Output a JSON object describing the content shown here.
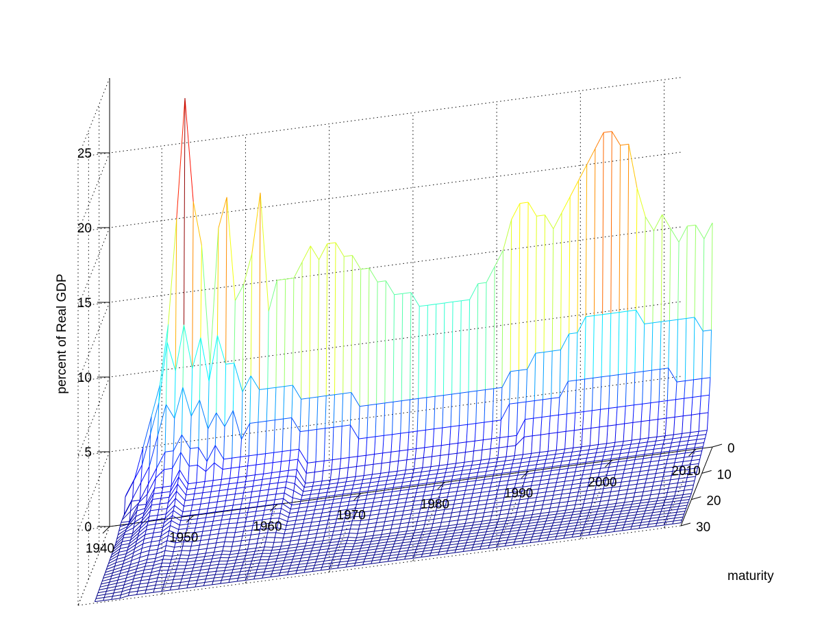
{
  "chart_data": {
    "type": "surface-mesh",
    "title": "",
    "xlabel": "",
    "ylabel": "maturity",
    "zlabel": "percent of Real GDP",
    "xlim": [
      1940,
      2012
    ],
    "ylim": [
      0,
      30
    ],
    "zlim": [
      0,
      30
    ],
    "x_ticks": [
      "1940",
      "1950",
      "1960",
      "1970",
      "1980",
      "1990",
      "2000",
      "2010"
    ],
    "y_ticks": [
      "0",
      "10",
      "20",
      "30"
    ],
    "z_ticks": [
      "0",
      "5",
      "10",
      "15",
      "20",
      "25"
    ],
    "years": [
      1942,
      1943,
      1944,
      1945,
      1946,
      1947,
      1948,
      1949,
      1950,
      1951,
      1952,
      1953,
      1954,
      1955,
      1956,
      1957,
      1958,
      1959,
      1960,
      1961,
      1962,
      1963,
      1964,
      1965,
      1966,
      1967,
      1968,
      1969,
      1970,
      1971,
      1972,
      1973,
      1974,
      1975,
      1976,
      1977,
      1978,
      1979,
      1980,
      1981,
      1982,
      1983,
      1984,
      1985,
      1986,
      1987,
      1988,
      1989,
      1990,
      1991,
      1992,
      1993,
      1994,
      1995,
      1996,
      1997,
      1998,
      1999,
      2000,
      2001,
      2002,
      2003,
      2004,
      2005,
      2006,
      2007,
      2008,
      2009,
      2010,
      2011,
      2012
    ],
    "maturities": [
      0,
      1,
      2,
      3,
      4,
      5,
      6,
      7,
      8,
      9,
      10,
      11,
      12,
      13,
      14,
      15,
      16,
      17,
      18,
      19,
      20,
      21,
      22,
      23,
      24,
      25,
      26,
      27,
      28,
      29,
      30
    ],
    "series": [
      {
        "name": "maturity 0",
        "values": [
          2,
          3,
          5,
          7,
          9,
          13,
          20,
          28,
          21,
          18,
          10,
          19,
          21,
          14,
          15,
          17,
          21,
          13,
          15,
          15,
          15,
          16,
          17,
          16,
          17,
          17,
          16,
          16,
          15,
          15,
          14,
          14,
          13,
          13,
          13,
          12,
          12,
          12,
          12,
          12,
          12,
          12,
          13,
          13,
          14,
          15,
          17,
          18,
          18,
          17,
          17,
          16,
          17,
          18,
          19,
          20,
          21,
          22,
          22,
          21,
          21,
          18,
          16,
          15,
          16,
          15,
          14,
          15,
          15,
          14,
          15
        ]
      },
      {
        "name": "maturity 1",
        "values": [
          2,
          3,
          4,
          6,
          8,
          12,
          10,
          13,
          10,
          12,
          9,
          12,
          10,
          10,
          8,
          9,
          8,
          8,
          8,
          8,
          8,
          7,
          7,
          7,
          7,
          7,
          7,
          7,
          6,
          6,
          6,
          6,
          6,
          6,
          6,
          6,
          6,
          6,
          6,
          6,
          6,
          6,
          6,
          6,
          6,
          6,
          7,
          7,
          7,
          8,
          8,
          8,
          8,
          9,
          9,
          10,
          10,
          10,
          10,
          10,
          10,
          10,
          9,
          9,
          9,
          9,
          9,
          9,
          9,
          8,
          8
        ]
      },
      {
        "name": "maturity 2",
        "values": [
          1,
          2,
          3,
          4,
          6,
          8,
          7,
          9,
          7,
          8,
          6,
          7,
          6,
          7,
          5,
          6,
          6,
          6,
          6,
          6,
          6,
          5,
          5,
          5,
          5,
          5,
          5,
          5,
          4,
          4,
          4,
          4,
          4,
          4,
          4,
          4,
          4,
          4,
          4,
          4,
          4,
          4,
          4,
          4,
          4,
          4,
          5,
          5,
          5,
          5,
          5,
          5,
          5,
          6,
          6,
          6,
          6,
          6,
          6,
          6,
          6,
          6,
          6,
          6,
          6,
          6,
          5,
          5,
          5,
          5,
          5
        ]
      },
      {
        "name": "maturity 3",
        "values": [
          1,
          2,
          2,
          3,
          4,
          5,
          5,
          6,
          5,
          5,
          4,
          5,
          4,
          4,
          4,
          4,
          4,
          4,
          4,
          4,
          4,
          4,
          3,
          3,
          3,
          3,
          3,
          3,
          3,
          3,
          3,
          3,
          3,
          3,
          3,
          3,
          3,
          3,
          3,
          3,
          3,
          3,
          3,
          3,
          3,
          3,
          3,
          3,
          4,
          4,
          4,
          4,
          4,
          4,
          4,
          4,
          4,
          4,
          4,
          4,
          4,
          4,
          4,
          4,
          4,
          4,
          4,
          4,
          4,
          4,
          4
        ]
      },
      {
        "name": "maturity 5",
        "values": [
          1,
          1,
          2,
          2,
          3,
          3,
          3,
          4,
          3,
          3,
          3,
          3,
          3,
          3,
          3,
          3,
          3,
          3,
          3,
          3,
          3,
          3,
          2,
          2,
          2,
          2,
          2,
          2,
          2,
          2,
          2,
          2,
          2,
          2,
          2,
          2,
          2,
          2,
          2,
          2,
          2,
          2,
          2,
          2,
          2,
          2,
          2,
          2,
          2,
          2,
          2,
          2,
          2,
          2,
          2,
          2,
          2,
          2,
          2,
          2,
          2,
          2,
          2,
          2,
          2,
          2,
          2,
          2,
          2,
          2,
          2
        ]
      },
      {
        "name": "maturity 10",
        "values": [
          0.5,
          1,
          1,
          1.5,
          2,
          2,
          2,
          2.5,
          2,
          2,
          2,
          2,
          2,
          2,
          2,
          2,
          2,
          2,
          2,
          2,
          2,
          1.5,
          1.5,
          1.5,
          1.5,
          1.5,
          1.5,
          1.5,
          1.5,
          1.5,
          1.5,
          1.5,
          1.5,
          1.5,
          1.5,
          1.5,
          1.5,
          1.5,
          1.5,
          1.5,
          1.5,
          1.5,
          1.5,
          1.5,
          1.5,
          1.5,
          1.5,
          1.5,
          1.5,
          1.5,
          1.5,
          1.5,
          1.5,
          1.5,
          1.5,
          1.5,
          1.5,
          1.5,
          1.5,
          1.5,
          1.5,
          1.5,
          1.5,
          1.5,
          1.5,
          1.5,
          1.5,
          1.5,
          1.5,
          1.5,
          1.5
        ]
      },
      {
        "name": "maturity 20",
        "values": [
          0.3,
          0.4,
          0.5,
          0.6,
          0.7,
          0.8,
          0.8,
          0.9,
          0.8,
          0.8,
          0.7,
          0.7,
          0.7,
          0.7,
          0.7,
          0.6,
          0.6,
          0.6,
          0.6,
          0.6,
          0.5,
          0.5,
          0.5,
          0.5,
          0.5,
          0.5,
          0.5,
          0.5,
          0.5,
          0.5,
          0.4,
          0.4,
          0.4,
          0.4,
          0.4,
          0.4,
          0.4,
          0.4,
          0.4,
          0.4,
          0.4,
          0.4,
          0.4,
          0.4,
          0.4,
          0.4,
          0.4,
          0.4,
          0.4,
          0.4,
          0.4,
          0.4,
          0.4,
          0.4,
          0.4,
          0.4,
          0.4,
          0.4,
          0.4,
          0.4,
          0.4,
          0.4,
          0.4,
          0.4,
          0.4,
          0.4,
          0.4,
          0.4,
          0.4,
          0.4,
          0.4
        ]
      },
      {
        "name": "maturity 30",
        "values": [
          0.1,
          0.1,
          0.1,
          0.1,
          0.2,
          0.2,
          0.2,
          0.2,
          0.2,
          0.2,
          0.2,
          0.2,
          0.2,
          0.2,
          0.2,
          0.2,
          0.2,
          0.2,
          0.2,
          0.2,
          0.2,
          0.2,
          0.2,
          0.2,
          0.2,
          0.2,
          0.2,
          0.2,
          0.2,
          0.2,
          0.2,
          0.2,
          0.2,
          0.2,
          0.2,
          0.2,
          0.2,
          0.2,
          0.2,
          0.2,
          0.2,
          0.2,
          0.2,
          0.2,
          0.2,
          0.2,
          0.2,
          0.2,
          0.2,
          0.2,
          0.2,
          0.2,
          0.2,
          0.2,
          0.2,
          0.2,
          0.2,
          0.2,
          0.2,
          0.2,
          0.2,
          0.2,
          0.2,
          0.2,
          0.2,
          0.2,
          0.2,
          0.2,
          0.2,
          0.2,
          0.2
        ]
      }
    ],
    "colormap": "jet",
    "colors": {
      "low": "#00008f",
      "mid": "#00ffff",
      "high": "#800000"
    },
    "grid": true
  }
}
